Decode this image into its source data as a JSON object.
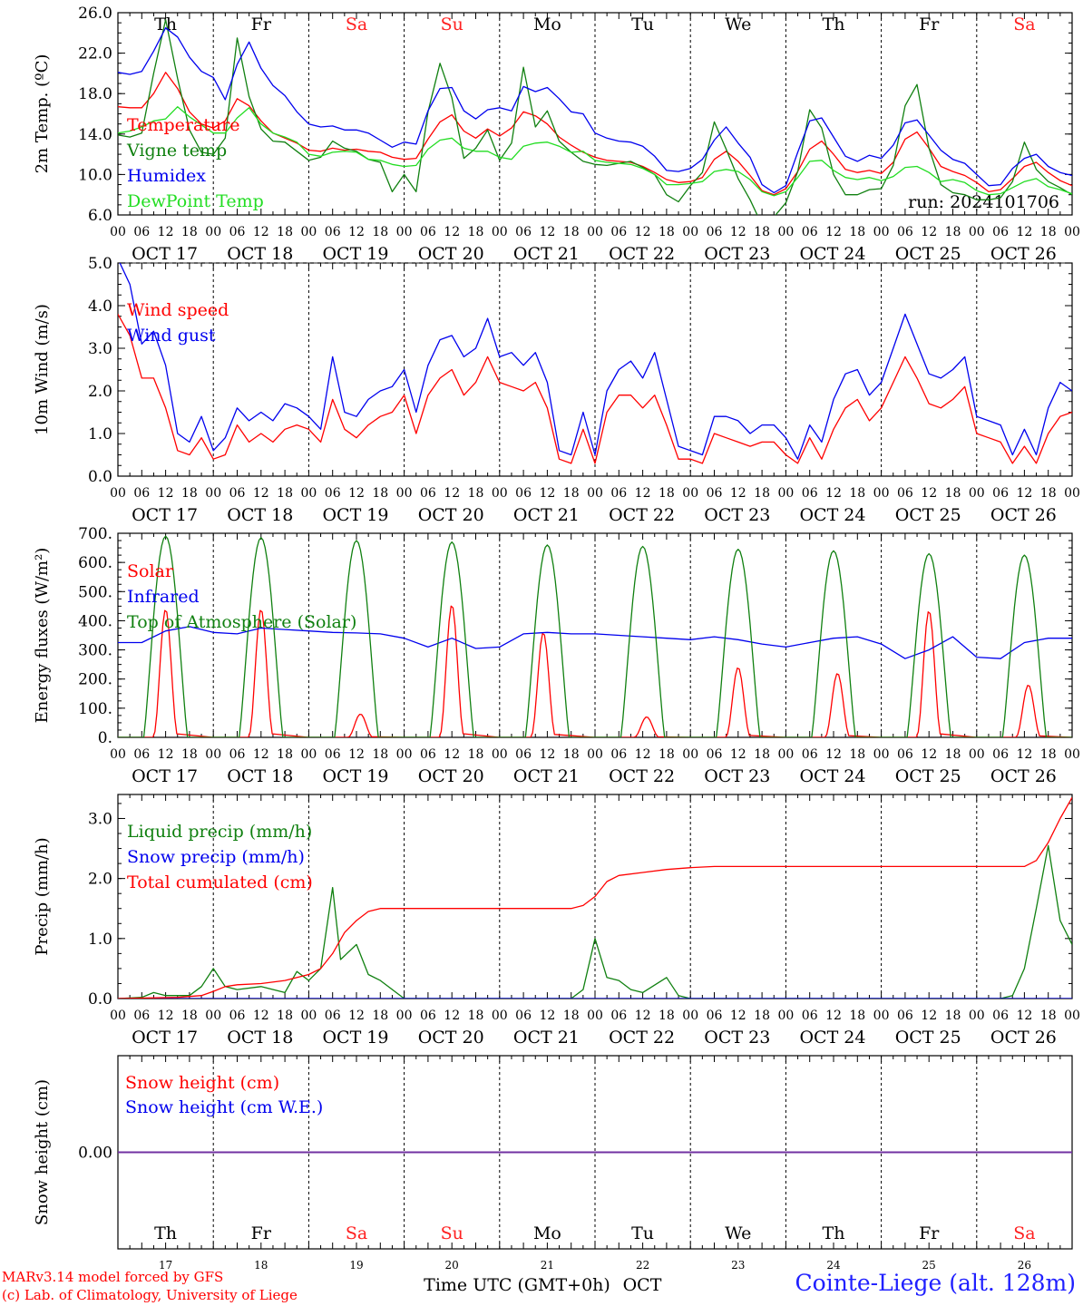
{
  "run_label": "run: 2024101706",
  "xaxis": {
    "hour_labels": [
      "00",
      "06",
      "12",
      "18"
    ],
    "last_hour_label": "00",
    "dates": [
      "OCT 17",
      "OCT 18",
      "OCT 19",
      "OCT 20",
      "OCT 21",
      "OCT 22",
      "OCT 23",
      "OCT 24",
      "OCT 25",
      "OCT 26"
    ],
    "weekdays": [
      "Th",
      "Fr",
      "Sa",
      "Su",
      "Mo",
      "Tu",
      "We",
      "Th",
      "Fr",
      "Sa"
    ],
    "day_numbers": [
      "17",
      "18",
      "19",
      "20",
      "21",
      "22",
      "23",
      "24",
      "25",
      "26"
    ],
    "bottom_label": "Time UTC (GMT+0h)",
    "month_label": "OCT"
  },
  "colors": {
    "weekday": "#000000",
    "weekend": "#ff2020",
    "red": "#ff0000",
    "green": "#108010",
    "blue": "#0000ee",
    "lightgreen": "#22dd22",
    "purple": "#7030a0"
  },
  "credits": [
    "MARv3.14 model forced by GFS",
    "(c) Lab. of Climatology, University of Liege"
  ],
  "station": "Cointe-Liege (alt. 128m)",
  "chart_data": [
    {
      "id": "temperature",
      "type": "line",
      "ylabel": "2m Temp. (ºC)",
      "ylim": [
        6,
        26
      ],
      "yticks": [
        6,
        10,
        14,
        18,
        22,
        26
      ],
      "tick_labels": [
        "6.0",
        "10.0",
        "14.0",
        "18.0",
        "22.0",
        "26.0"
      ],
      "x": [
        0,
        3,
        6,
        9,
        12,
        15,
        18,
        21,
        24,
        27,
        30,
        33,
        36,
        39,
        42,
        45,
        48,
        51,
        54,
        57,
        60,
        63,
        66,
        69,
        72,
        75,
        78,
        81,
        84,
        87,
        90,
        93,
        96,
        99,
        102,
        105,
        108,
        111,
        114,
        117,
        120,
        123,
        126,
        129,
        132,
        135,
        138,
        141,
        144,
        147,
        150,
        153,
        156,
        159,
        162,
        165,
        168,
        171,
        174,
        177,
        180,
        183,
        186,
        189,
        192,
        195,
        198,
        201,
        204,
        207,
        210,
        213,
        216,
        219,
        222,
        225,
        228,
        231,
        234,
        237,
        240
      ],
      "series": [
        {
          "name": "Temperature",
          "color": "red",
          "values": [
            16.7,
            16.6,
            16.6,
            18.0,
            20.1,
            18.5,
            16.2,
            15.0,
            14.6,
            15.3,
            17.5,
            16.8,
            15.3,
            14.1,
            13.6,
            13.1,
            12.4,
            12.3,
            12.6,
            12.4,
            12.5,
            12.3,
            12.2,
            11.7,
            11.5,
            11.6,
            13.5,
            15.2,
            15.9,
            14.3,
            13.6,
            14.5,
            13.8,
            14.6,
            16.2,
            15.8,
            15.0,
            13.7,
            12.9,
            12.2,
            11.7,
            11.4,
            11.3,
            11.2,
            10.8,
            10.2,
            9.5,
            9.2,
            9.3,
            9.7,
            11.5,
            12.3,
            11.3,
            9.9,
            8.4,
            8.0,
            8.6,
            10.3,
            12.5,
            13.3,
            12.0,
            10.5,
            10.2,
            10.4,
            10.1,
            11.2,
            13.5,
            14.2,
            12.6,
            10.8,
            10.3,
            9.9,
            9.2,
            8.3,
            8.5,
            9.6,
            10.8,
            11.2,
            10.2,
            9.4,
            8.9
          ]
        },
        {
          "name": "Vigne temp",
          "color": "green",
          "values": [
            13.9,
            13.7,
            14.1,
            20.0,
            25.3,
            19.5,
            14.4,
            12.2,
            12.0,
            13.6,
            23.5,
            17.7,
            14.5,
            13.3,
            13.2,
            12.3,
            11.4,
            11.7,
            13.3,
            12.6,
            12.3,
            11.5,
            11.2,
            8.3,
            10.0,
            8.3,
            16.2,
            21.0,
            17.6,
            11.6,
            12.6,
            14.4,
            11.4,
            13.1,
            20.6,
            14.7,
            16.3,
            13.3,
            12.2,
            11.3,
            11.0,
            10.9,
            11.1,
            11.3,
            10.7,
            10.0,
            8.0,
            7.3,
            8.9,
            10.2,
            15.2,
            12.5,
            9.6,
            7.5,
            5.0,
            5.8,
            7.2,
            10.3,
            16.4,
            14.6,
            10.0,
            8.0,
            8.0,
            8.5,
            8.6,
            10.9,
            16.8,
            18.9,
            12.6,
            9.0,
            8.2,
            8.0,
            7.5,
            7.5,
            7.7,
            9.3,
            13.2,
            10.5,
            9.3,
            8.7,
            8.0
          ]
        },
        {
          "name": "Humidex",
          "color": "blue",
          "values": [
            20.1,
            19.9,
            20.2,
            22.2,
            24.5,
            23.6,
            21.6,
            20.2,
            19.6,
            17.4,
            20.9,
            23.1,
            20.5,
            18.8,
            17.8,
            16.2,
            15.0,
            14.7,
            14.8,
            14.4,
            14.4,
            14.1,
            13.4,
            12.7,
            13.2,
            13.0,
            16.3,
            18.5,
            18.6,
            16.3,
            15.5,
            16.4,
            16.6,
            16.3,
            18.7,
            18.2,
            18.6,
            17.5,
            16.2,
            16.0,
            14.1,
            13.6,
            13.3,
            13.2,
            12.8,
            11.8,
            10.4,
            10.3,
            10.6,
            11.5,
            13.4,
            14.7,
            13.1,
            11.7,
            9.0,
            8.2,
            8.9,
            12.2,
            15.3,
            15.6,
            13.7,
            11.8,
            11.3,
            11.9,
            11.6,
            12.9,
            15.1,
            15.4,
            13.9,
            12.4,
            11.5,
            11.1,
            10.0,
            8.9,
            9.0,
            10.6,
            11.6,
            12.0,
            10.8,
            10.2,
            9.9
          ]
        },
        {
          "name": "DewPoint Temp",
          "color": "lightgreen",
          "values": [
            14.1,
            14.3,
            14.7,
            15.3,
            15.5,
            16.7,
            15.7,
            14.9,
            14.1,
            14.1,
            15.6,
            16.6,
            15.0,
            14.1,
            13.7,
            13.2,
            12.0,
            11.8,
            12.2,
            12.3,
            12.2,
            11.5,
            11.4,
            11.0,
            10.8,
            10.9,
            12.5,
            13.4,
            13.6,
            12.6,
            12.3,
            12.3,
            11.7,
            11.5,
            12.8,
            13.1,
            13.2,
            12.8,
            12.2,
            12.3,
            11.4,
            11.2,
            11.1,
            11.0,
            10.6,
            10.0,
            9.0,
            9.0,
            9.1,
            9.3,
            10.3,
            10.5,
            10.3,
            9.5,
            8.3,
            7.9,
            8.3,
            9.7,
            11.3,
            11.4,
            10.4,
            9.7,
            9.5,
            9.7,
            9.4,
            9.8,
            10.7,
            10.8,
            10.2,
            9.3,
            9.5,
            9.2,
            8.4,
            8.0,
            8.1,
            8.7,
            9.3,
            9.6,
            8.8,
            8.5,
            8.1
          ]
        }
      ]
    },
    {
      "id": "wind",
      "type": "line",
      "ylabel": "10m Wind (m/s)",
      "ylim": [
        0,
        5.0
      ],
      "yticks": [
        0,
        1,
        2,
        3,
        4,
        5
      ],
      "tick_labels": [
        "0.0",
        "1.0",
        "2.0",
        "3.0",
        "4.0",
        "5.0"
      ],
      "x": [
        0,
        3,
        6,
        9,
        12,
        15,
        18,
        21,
        24,
        27,
        30,
        33,
        36,
        39,
        42,
        45,
        48,
        51,
        54,
        57,
        60,
        63,
        66,
        69,
        72,
        75,
        78,
        81,
        84,
        87,
        90,
        93,
        96,
        99,
        102,
        105,
        108,
        111,
        114,
        117,
        120,
        123,
        126,
        129,
        132,
        135,
        138,
        141,
        144,
        147,
        150,
        153,
        156,
        159,
        162,
        165,
        168,
        171,
        174,
        177,
        180,
        183,
        186,
        189,
        192,
        195,
        198,
        201,
        204,
        207,
        210,
        213,
        216,
        219,
        222,
        225,
        228,
        231,
        234,
        237,
        240
      ],
      "series": [
        {
          "name": "Wind speed",
          "color": "red",
          "values": [
            3.8,
            3.3,
            2.3,
            2.3,
            1.6,
            0.6,
            0.5,
            0.9,
            0.4,
            0.5,
            1.2,
            0.8,
            1.0,
            0.8,
            1.1,
            1.2,
            1.1,
            0.8,
            1.8,
            1.1,
            0.9,
            1.2,
            1.4,
            1.5,
            1.9,
            1.0,
            1.9,
            2.3,
            2.5,
            1.9,
            2.2,
            2.8,
            2.2,
            2.1,
            2.0,
            2.2,
            1.6,
            0.4,
            0.3,
            1.1,
            0.3,
            1.5,
            1.9,
            1.9,
            1.6,
            1.9,
            1.2,
            0.4,
            0.4,
            0.3,
            1.0,
            0.9,
            0.8,
            0.7,
            0.8,
            0.8,
            0.5,
            0.3,
            0.9,
            0.4,
            1.1,
            1.6,
            1.8,
            1.3,
            1.6,
            2.2,
            2.8,
            2.3,
            1.7,
            1.6,
            1.8,
            2.1,
            1.0,
            0.9,
            0.8,
            0.3,
            0.7,
            0.3,
            1.0,
            1.4,
            1.5
          ]
        },
        {
          "name": "Wind gust",
          "color": "blue",
          "values": [
            5.1,
            4.5,
            3.1,
            3.4,
            2.6,
            1.0,
            0.8,
            1.4,
            0.6,
            0.9,
            1.6,
            1.3,
            1.5,
            1.3,
            1.7,
            1.6,
            1.4,
            1.1,
            2.8,
            1.5,
            1.4,
            1.8,
            2.0,
            2.1,
            2.5,
            1.5,
            2.6,
            3.2,
            3.3,
            2.8,
            3.0,
            3.7,
            2.8,
            2.9,
            2.6,
            2.9,
            2.2,
            0.6,
            0.5,
            1.5,
            0.5,
            2.0,
            2.5,
            2.7,
            2.3,
            2.9,
            1.8,
            0.7,
            0.6,
            0.5,
            1.4,
            1.4,
            1.3,
            1.0,
            1.2,
            1.2,
            0.9,
            0.4,
            1.2,
            0.8,
            1.8,
            2.4,
            2.5,
            1.9,
            2.2,
            3.0,
            3.8,
            3.1,
            2.4,
            2.3,
            2.5,
            2.8,
            1.4,
            1.3,
            1.2,
            0.5,
            1.1,
            0.5,
            1.6,
            2.2,
            2.0
          ]
        }
      ]
    },
    {
      "id": "energy",
      "type": "line",
      "ylabel": "Energy fluxes (W/m²)",
      "ylim": [
        0,
        700
      ],
      "yticks": [
        0,
        100,
        200,
        300,
        400,
        500,
        600,
        700
      ],
      "tick_labels": [
        "0.",
        "100.",
        "200.",
        "300.",
        "400.",
        "500.",
        "600.",
        "700."
      ],
      "series": [
        {
          "name": "Solar",
          "color": "red",
          "peaks_hour": [
            12,
            12,
            13,
            12,
            11,
            13,
            12,
            13,
            12,
            13
          ],
          "peaks_value": [
            440,
            440,
            80,
            455,
            360,
            70,
            240,
            220,
            435,
            180
          ]
        },
        {
          "name": "Infrared",
          "color": "blue",
          "x": [
            0,
            6,
            12,
            18,
            24,
            30,
            36,
            42,
            48,
            54,
            60,
            66,
            72,
            78,
            84,
            90,
            96,
            102,
            108,
            114,
            120,
            126,
            132,
            138,
            144,
            150,
            156,
            162,
            168,
            174,
            180,
            186,
            192,
            198,
            204,
            210,
            216,
            222,
            228,
            234,
            240
          ],
          "values": [
            325,
            325,
            365,
            380,
            360,
            355,
            375,
            370,
            365,
            360,
            358,
            355,
            340,
            310,
            340,
            305,
            310,
            355,
            360,
            355,
            355,
            350,
            345,
            340,
            335,
            345,
            335,
            320,
            310,
            325,
            340,
            345,
            320,
            270,
            300,
            345,
            275,
            270,
            325,
            340,
            340
          ]
        },
        {
          "name": "Top of Atmosphere (Solar)",
          "color": "green",
          "peaks_value": [
            690,
            685,
            675,
            670,
            660,
            655,
            645,
            640,
            630,
            625
          ]
        }
      ]
    },
    {
      "id": "precip",
      "type": "line",
      "ylabel": "Precip (mm/h)",
      "ylim": [
        0,
        3.4
      ],
      "yticks": [
        0,
        1,
        2,
        3
      ],
      "tick_labels": [
        "0.0",
        "1.0",
        "2.0",
        "3.0"
      ],
      "series": [
        {
          "name": "Liquid precip (mm/h)",
          "color": "green",
          "x": [
            0,
            6,
            9,
            12,
            18,
            21,
            24,
            27,
            30,
            36,
            42,
            45,
            48,
            51,
            54,
            56,
            60,
            63,
            66,
            72,
            114,
            117,
            120,
            123,
            126,
            129,
            132,
            138,
            141,
            144,
            150,
            216,
            222,
            225,
            228,
            231,
            234,
            237,
            240
          ],
          "values": [
            0,
            0.02,
            0.1,
            0.05,
            0.05,
            0.2,
            0.5,
            0.2,
            0.15,
            0.2,
            0.1,
            0.45,
            0.3,
            0.5,
            1.85,
            0.65,
            0.9,
            0.4,
            0.3,
            0.0,
            0.0,
            0.15,
            1.0,
            0.35,
            0.3,
            0.15,
            0.1,
            0.35,
            0.05,
            0.0,
            0.0,
            0.0,
            0.0,
            0.05,
            0.5,
            1.5,
            2.55,
            1.3,
            0.9
          ]
        },
        {
          "name": "Snow precip (mm/h)",
          "color": "blue",
          "x": [
            0,
            240
          ],
          "values": [
            0,
            0
          ]
        },
        {
          "name": "Total cumulated (cm)",
          "color": "red",
          "x": [
            0,
            15,
            21,
            24,
            27,
            30,
            36,
            42,
            48,
            51,
            54,
            57,
            60,
            63,
            66,
            72,
            114,
            117,
            120,
            123,
            126,
            132,
            138,
            144,
            150,
            228,
            231,
            234,
            237,
            240
          ],
          "values": [
            0,
            0.02,
            0.05,
            0.12,
            0.2,
            0.23,
            0.25,
            0.3,
            0.4,
            0.5,
            0.75,
            1.1,
            1.3,
            1.45,
            1.5,
            1.5,
            1.5,
            1.55,
            1.7,
            1.95,
            2.05,
            2.1,
            2.15,
            2.18,
            2.2,
            2.2,
            2.3,
            2.6,
            3.0,
            3.35
          ]
        }
      ]
    },
    {
      "id": "snow",
      "type": "line",
      "ylabel": "Snow height (cm)",
      "ylim": [
        -1,
        1
      ],
      "yticks": [
        0
      ],
      "tick_labels": [
        "0.00"
      ],
      "series": [
        {
          "name": "Snow height (cm)",
          "color": "red",
          "x": [
            0,
            240
          ],
          "values": [
            0,
            0
          ]
        },
        {
          "name": "Snow height (cm W.E.)",
          "color": "blue",
          "x": [
            0,
            240
          ],
          "values": [
            0,
            0
          ]
        }
      ]
    }
  ]
}
